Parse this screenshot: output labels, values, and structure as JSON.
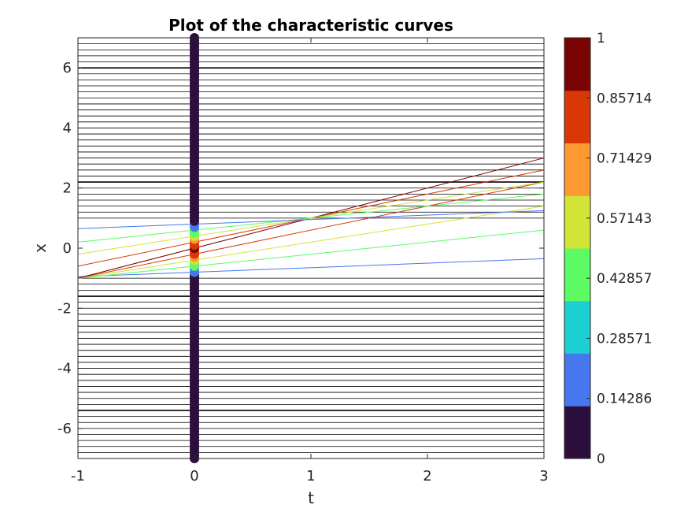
{
  "chart_data": {
    "type": "line",
    "title": "Plot of the characteristic curves",
    "xlabel": "t",
    "ylabel": "x",
    "xlim": [
      -1,
      3
    ],
    "ylim": [
      -7,
      7
    ],
    "xticks": [
      "-1",
      "0",
      "1",
      "2",
      "3"
    ],
    "yticks": [
      "-6",
      "-4",
      "-2",
      "0",
      "2",
      "4",
      "6"
    ],
    "grid": false,
    "colorbar": {
      "min": 0,
      "max": 1,
      "levels": 7,
      "tick_labels": [
        "0",
        "0.14286",
        "0.28571",
        "0.42857",
        "0.57143",
        "0.71429",
        "0.85714",
        "1"
      ],
      "colors": [
        "#2d0f3d",
        "#4677ee",
        "#1ccfd2",
        "#5cfb64",
        "#d2e435",
        "#fd9931",
        "#d93806",
        "#7a0403"
      ]
    },
    "horizontal_lines": {
      "description_values": "flat characteristic lines (x constant in t) at spacing 0.2 outside the pulse",
      "x_from": -7,
      "x_to": 7,
      "step": 0.2,
      "excluded_range": [
        -1,
        1
      ],
      "dark_positions": [
        -5.4,
        -1.6,
        -1.5,
        2.2,
        6.0
      ],
      "color": "#000000"
    },
    "sloped_lines": [
      {
        "x0": -0.8,
        "u": 0.15,
        "color": "#4677ee"
      },
      {
        "x0": -0.6,
        "u": 0.4,
        "color": "#5cfb64"
      },
      {
        "x0": -0.4,
        "u": 0.6,
        "color": "#d2e435"
      },
      {
        "x0": -0.2,
        "u": 0.8,
        "color": "#d93806"
      },
      {
        "x0": 0.0,
        "u": 1.0,
        "color": "#7a0403"
      },
      {
        "x0": 0.2,
        "u": 0.8,
        "color": "#d93806"
      },
      {
        "x0": 0.4,
        "u": 0.6,
        "color": "#d2e435"
      },
      {
        "x0": 0.6,
        "u": 0.4,
        "color": "#5cfb64"
      },
      {
        "x0": 0.8,
        "u": 0.15,
        "color": "#4677ee"
      }
    ],
    "markers": {
      "t": 0,
      "step": 0.1,
      "x_from": -7,
      "x_to": 7,
      "colored": [
        {
          "x": -0.8,
          "color": "#4677ee"
        },
        {
          "x": -0.7,
          "color": "#4677ee"
        },
        {
          "x": -0.6,
          "color": "#5cfb64"
        },
        {
          "x": -0.5,
          "color": "#5cfb64"
        },
        {
          "x": -0.4,
          "color": "#d2e435"
        },
        {
          "x": -0.3,
          "color": "#fd9931"
        },
        {
          "x": -0.2,
          "color": "#d93806"
        },
        {
          "x": -0.1,
          "color": "#d93806"
        },
        {
          "x": 0.0,
          "color": "#7a0403"
        },
        {
          "x": 0.1,
          "color": "#d93806"
        },
        {
          "x": 0.2,
          "color": "#d93806"
        },
        {
          "x": 0.3,
          "color": "#fd9931"
        },
        {
          "x": 0.4,
          "color": "#d2e435"
        },
        {
          "x": 0.5,
          "color": "#5cfb64"
        },
        {
          "x": 0.6,
          "color": "#5cfb64"
        },
        {
          "x": 0.7,
          "color": "#4677ee"
        },
        {
          "x": 0.8,
          "color": "#4677ee"
        }
      ],
      "default_color": "#2d0f3d"
    }
  }
}
